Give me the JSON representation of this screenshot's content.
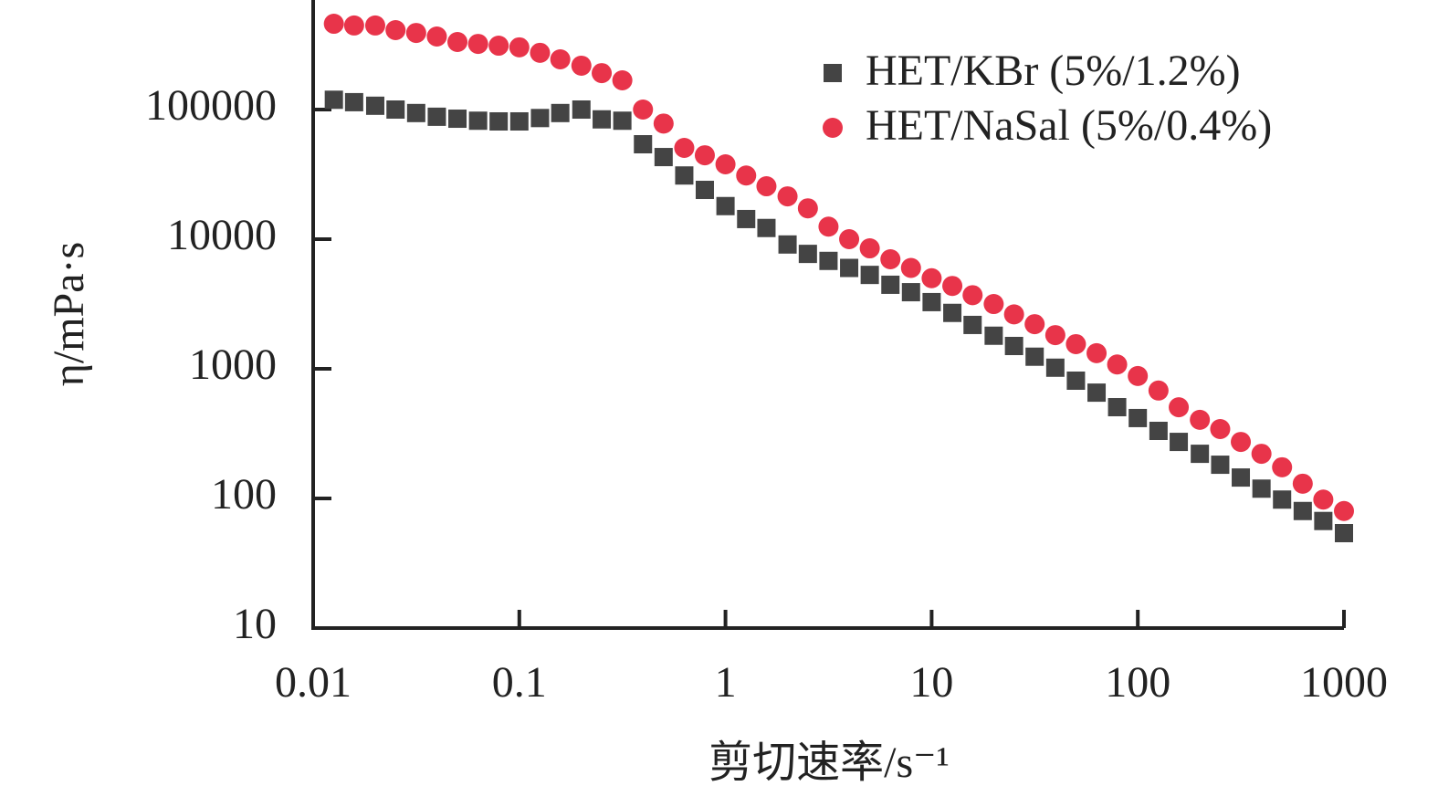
{
  "chart_data": {
    "type": "scatter",
    "xlabel": "剪切速率/s⁻¹",
    "ylabel": "η/mPa·s",
    "xscale": "log",
    "yscale": "log",
    "xlim": [
      0.01,
      1000
    ],
    "ylim": [
      10,
      700000
    ],
    "xticks": [
      0.01,
      0.1,
      1,
      10,
      100,
      1000
    ],
    "yticks": [
      10,
      100,
      1000,
      10000,
      100000
    ],
    "legend": "upper right",
    "series": [
      {
        "name": "HET/KBr (5%/1.2%)",
        "color": "#444444",
        "marker": "square",
        "x": [
          0.0126,
          0.0158,
          0.02,
          0.0251,
          0.0316,
          0.0398,
          0.0501,
          0.0631,
          0.0794,
          0.1,
          0.126,
          0.158,
          0.2,
          0.251,
          0.316,
          0.398,
          0.501,
          0.631,
          0.794,
          1,
          1.26,
          1.58,
          2,
          2.51,
          3.16,
          3.98,
          5.01,
          6.31,
          7.94,
          10,
          12.6,
          15.8,
          20,
          25.1,
          31.6,
          39.8,
          50.1,
          63.1,
          79.4,
          100,
          126,
          158,
          200,
          251,
          316,
          398,
          501,
          631,
          794,
          1000
        ],
        "values": [
          119000,
          114000,
          107000,
          100000,
          94000,
          88000,
          85000,
          82000,
          81000,
          81000,
          86000,
          94000,
          100000,
          84000,
          82000,
          54000,
          43000,
          31000,
          24000,
          18000,
          14300,
          12200,
          9100,
          7700,
          6800,
          6000,
          5300,
          4450,
          3900,
          3270,
          2700,
          2180,
          1800,
          1500,
          1240,
          1020,
          810,
          655,
          506,
          417,
          332,
          273,
          221,
          182,
          145,
          119,
          98,
          80,
          67,
          54
        ]
      },
      {
        "name": "HET/NaSal (5%/0.4%)",
        "color": "#e8344a",
        "marker": "circle",
        "x": [
          0.0126,
          0.0158,
          0.02,
          0.0251,
          0.0316,
          0.0398,
          0.0501,
          0.0631,
          0.0794,
          0.1,
          0.126,
          0.158,
          0.2,
          0.251,
          0.316,
          0.398,
          0.501,
          0.631,
          0.794,
          1,
          1.26,
          1.58,
          2,
          2.51,
          3.16,
          3.98,
          5.01,
          6.31,
          7.94,
          10,
          12.6,
          15.8,
          20,
          25.1,
          31.6,
          39.8,
          50.1,
          63.1,
          79.4,
          100,
          126,
          158,
          200,
          251,
          316,
          398,
          501,
          631,
          794,
          1000
        ],
        "values": [
          459000,
          445000,
          445000,
          410000,
          390000,
          366000,
          332000,
          321000,
          311000,
          302000,
          274000,
          244000,
          218000,
          191000,
          168000,
          100000,
          78000,
          50600,
          44400,
          37800,
          31000,
          25600,
          21400,
          17300,
          12500,
          10000,
          8500,
          7000,
          6000,
          5000,
          4360,
          3700,
          3160,
          2630,
          2210,
          1820,
          1550,
          1320,
          1080,
          880,
          680,
          505,
          404,
          343,
          273,
          221,
          174,
          130,
          98,
          80
        ]
      }
    ]
  }
}
